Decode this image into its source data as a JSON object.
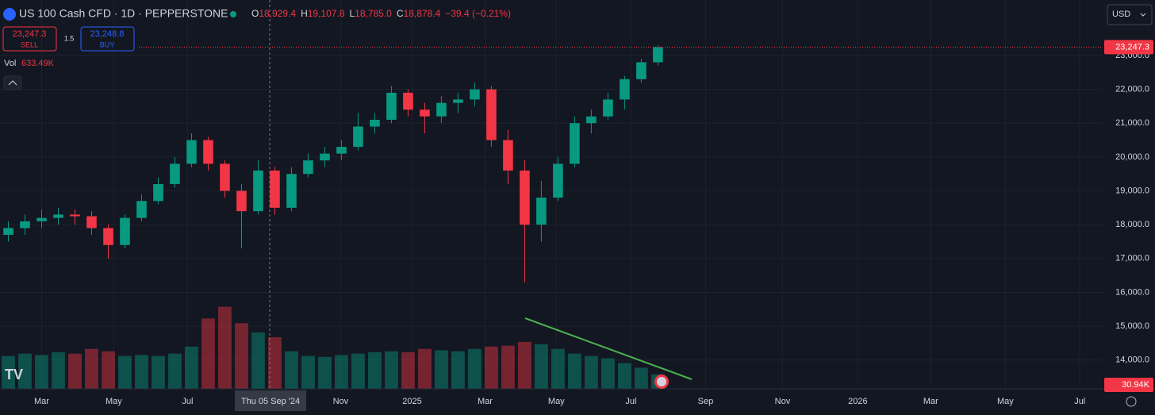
{
  "chart_data": {
    "type": "candlestick",
    "title": "US 100 Cash CFD · 1D · PEPPERSTONE",
    "ohlc": [
      {
        "label": "O",
        "value": "18,929.4"
      },
      {
        "label": "H",
        "value": "19,107.8"
      },
      {
        "label": "L",
        "value": "18,785.0"
      },
      {
        "label": "C",
        "value": "18,878.4"
      }
    ],
    "change": "−39.4 (−0.21%)",
    "sell": {
      "price": "23,247.3",
      "label": "SELL"
    },
    "buy": {
      "price": "23,248.8",
      "label": "BUY"
    },
    "spread": "1.5",
    "currency": "USD",
    "crosshair_label": "Thu 05 Sep '24",
    "last_price": {
      "value": 23247.3,
      "label": "23,247.3"
    },
    "up_color": "#089981",
    "down_color": "#f23645",
    "grid": true,
    "open": [
      17700,
      17900,
      18100,
      18200,
      18300,
      18250,
      17900,
      17400,
      18200,
      18700,
      19200,
      19800,
      20500,
      19800,
      19000,
      18400,
      19600,
      18500,
      19500,
      19900,
      20100,
      20300,
      20900,
      21100,
      21900,
      21400,
      21200,
      21600,
      21700,
      22000,
      20500,
      19600,
      18000,
      18800,
      19800,
      21000,
      21200,
      21700,
      22300,
      22800
    ],
    "high": [
      18100,
      18300,
      18450,
      18500,
      18450,
      18400,
      18000,
      18300,
      18900,
      19400,
      20000,
      20700,
      20600,
      19900,
      19200,
      19900,
      19700,
      19700,
      20100,
      20300,
      20500,
      21300,
      21300,
      22100,
      22000,
      21600,
      21800,
      21900,
      22200,
      22100,
      20800,
      19900,
      19300,
      20000,
      21200,
      21400,
      21900,
      22400,
      22900,
      23300
    ],
    "low": [
      17500,
      17700,
      17900,
      18000,
      18000,
      17700,
      17000,
      17300,
      18100,
      18600,
      19100,
      19700,
      19600,
      18800,
      17300,
      18300,
      18300,
      18400,
      19400,
      19700,
      19900,
      20200,
      20700,
      21000,
      21200,
      20700,
      21000,
      21300,
      21500,
      20300,
      19200,
      16300,
      17500,
      18700,
      19700,
      20700,
      21100,
      21400,
      22200,
      22700
    ],
    "close": [
      17900,
      18100,
      18200,
      18300,
      18250,
      17900,
      17400,
      18200,
      18700,
      19200,
      19800,
      20500,
      19800,
      19000,
      18400,
      19600,
      18500,
      19500,
      19900,
      20100,
      20300,
      20900,
      21100,
      21900,
      21400,
      21200,
      21600,
      21700,
      22000,
      20500,
      19600,
      18000,
      18800,
      19800,
      21000,
      21200,
      21700,
      22300,
      22800,
      23247.3
    ],
    "volume": {
      "label": "Vol",
      "value_label": "633.49K",
      "ylim": [
        0,
        220
      ],
      "values": [
        70,
        75,
        72,
        78,
        75,
        85,
        80,
        70,
        72,
        70,
        75,
        90,
        150,
        175,
        140,
        120,
        110,
        80,
        70,
        68,
        72,
        75,
        78,
        80,
        78,
        85,
        82,
        80,
        85,
        90,
        92,
        100,
        95,
        85,
        75,
        70,
        65,
        55,
        45,
        30.94
      ],
      "last_label": "30.94K"
    },
    "xlim": [
      -0.5,
      65.7
    ],
    "xticks": [
      {
        "value": 2.0,
        "label": "Mar"
      },
      {
        "value": 6.33,
        "label": "May"
      },
      {
        "value": 10.76,
        "label": "Jul"
      },
      {
        "value": 19.95,
        "label": "Nov"
      },
      {
        "value": 24.24,
        "label": "2025"
      },
      {
        "value": 28.62,
        "label": "Mar"
      },
      {
        "value": 32.9,
        "label": "May"
      },
      {
        "value": 37.38,
        "label": "Jul"
      },
      {
        "value": 41.86,
        "label": "Sep"
      },
      {
        "value": 46.48,
        "label": "Nov"
      },
      {
        "value": 51.0,
        "label": "2026"
      },
      {
        "value": 55.38,
        "label": "Mar"
      },
      {
        "value": 59.86,
        "label": "May"
      },
      {
        "value": 64.33,
        "label": "Jul"
      }
    ],
    "ylim": [
      13150,
      24640
    ],
    "yticks": [
      {
        "value": 14000,
        "label": "14,000.0"
      },
      {
        "value": 15000,
        "label": "15,000.0"
      },
      {
        "value": 16000,
        "label": "16,000.0"
      },
      {
        "value": 17000,
        "label": "17,000.0"
      },
      {
        "value": 18000,
        "label": "18,000.0"
      },
      {
        "value": 19000,
        "label": "19,000.0"
      },
      {
        "value": 20000,
        "label": "20,000.0"
      },
      {
        "value": 21000,
        "label": "21,000.0"
      },
      {
        "value": 22000,
        "label": "22,000.0"
      },
      {
        "value": 23000,
        "label": "23,000.0"
      }
    ]
  }
}
